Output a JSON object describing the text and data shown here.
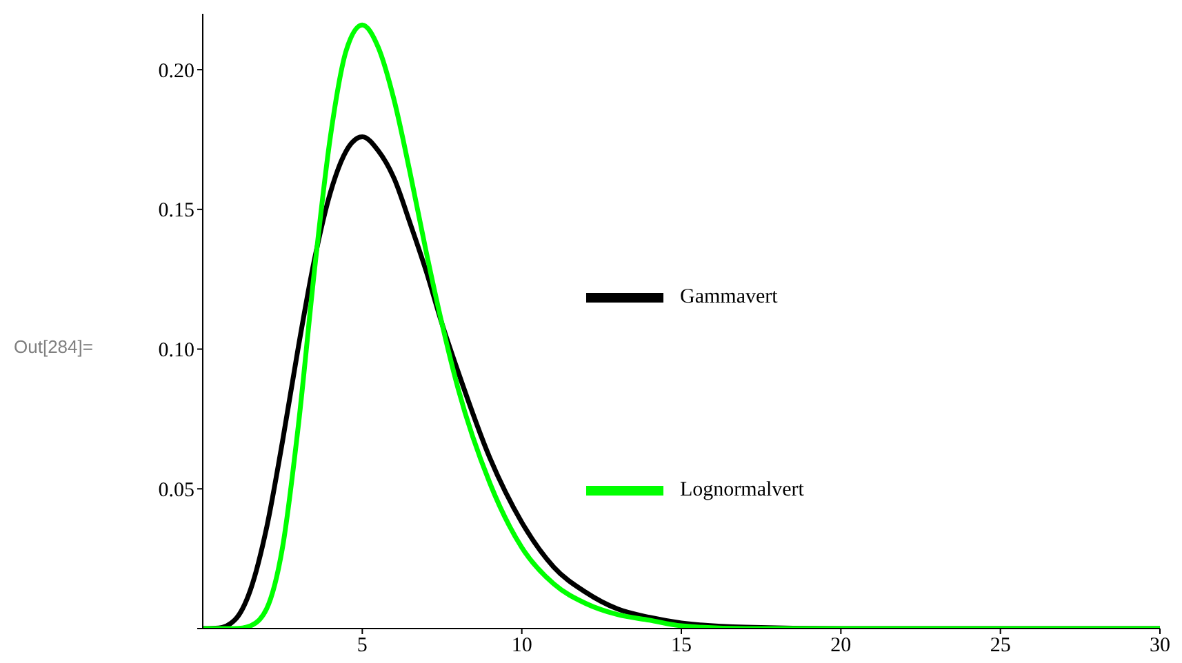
{
  "chart_data": {
    "type": "line",
    "x": [
      0,
      0.5,
      1,
      1.5,
      2,
      2.5,
      3,
      3.5,
      4,
      4.5,
      5,
      5.5,
      6,
      6.5,
      7,
      7.5,
      8,
      9,
      10,
      11,
      12,
      13,
      14,
      15,
      17,
      20,
      25,
      30
    ],
    "series": [
      {
        "name": "Gammavert",
        "color": "#000000",
        "values": [
          0,
          0.0002,
          0.003,
          0.014,
          0.036,
          0.067,
          0.101,
          0.132,
          0.156,
          0.171,
          0.176,
          0.171,
          0.161,
          0.145,
          0.128,
          0.109,
          0.092,
          0.061,
          0.038,
          0.022,
          0.013,
          0.007,
          0.004,
          0.002,
          0.0005,
          0,
          0,
          0
        ]
      },
      {
        "name": "Lognormalvert",
        "color": "#00ff00",
        "values": [
          0,
          0,
          0,
          0.001,
          0.007,
          0.029,
          0.073,
          0.128,
          0.176,
          0.207,
          0.216,
          0.208,
          0.189,
          0.163,
          0.135,
          0.109,
          0.086,
          0.052,
          0.029,
          0.016,
          0.009,
          0.005,
          0.003,
          0.001,
          0,
          0,
          0,
          0
        ]
      }
    ],
    "xlim": [
      0,
      30
    ],
    "xticks": [
      5,
      10,
      15,
      20,
      25,
      30
    ],
    "ylim": [
      0,
      0.22
    ],
    "yticks": [
      {
        "value": 0,
        "label": null
      },
      {
        "value": 0.05,
        "label": "0.05"
      },
      {
        "value": 0.1,
        "label": "0.10"
      },
      {
        "value": 0.15,
        "label": "0.15"
      },
      {
        "value": 0.2,
        "label": "0.20"
      }
    ],
    "legend": "right",
    "grid": false,
    "marker": "none",
    "line_style": "solid",
    "annotations": [
      "Out[284]="
    ]
  }
}
